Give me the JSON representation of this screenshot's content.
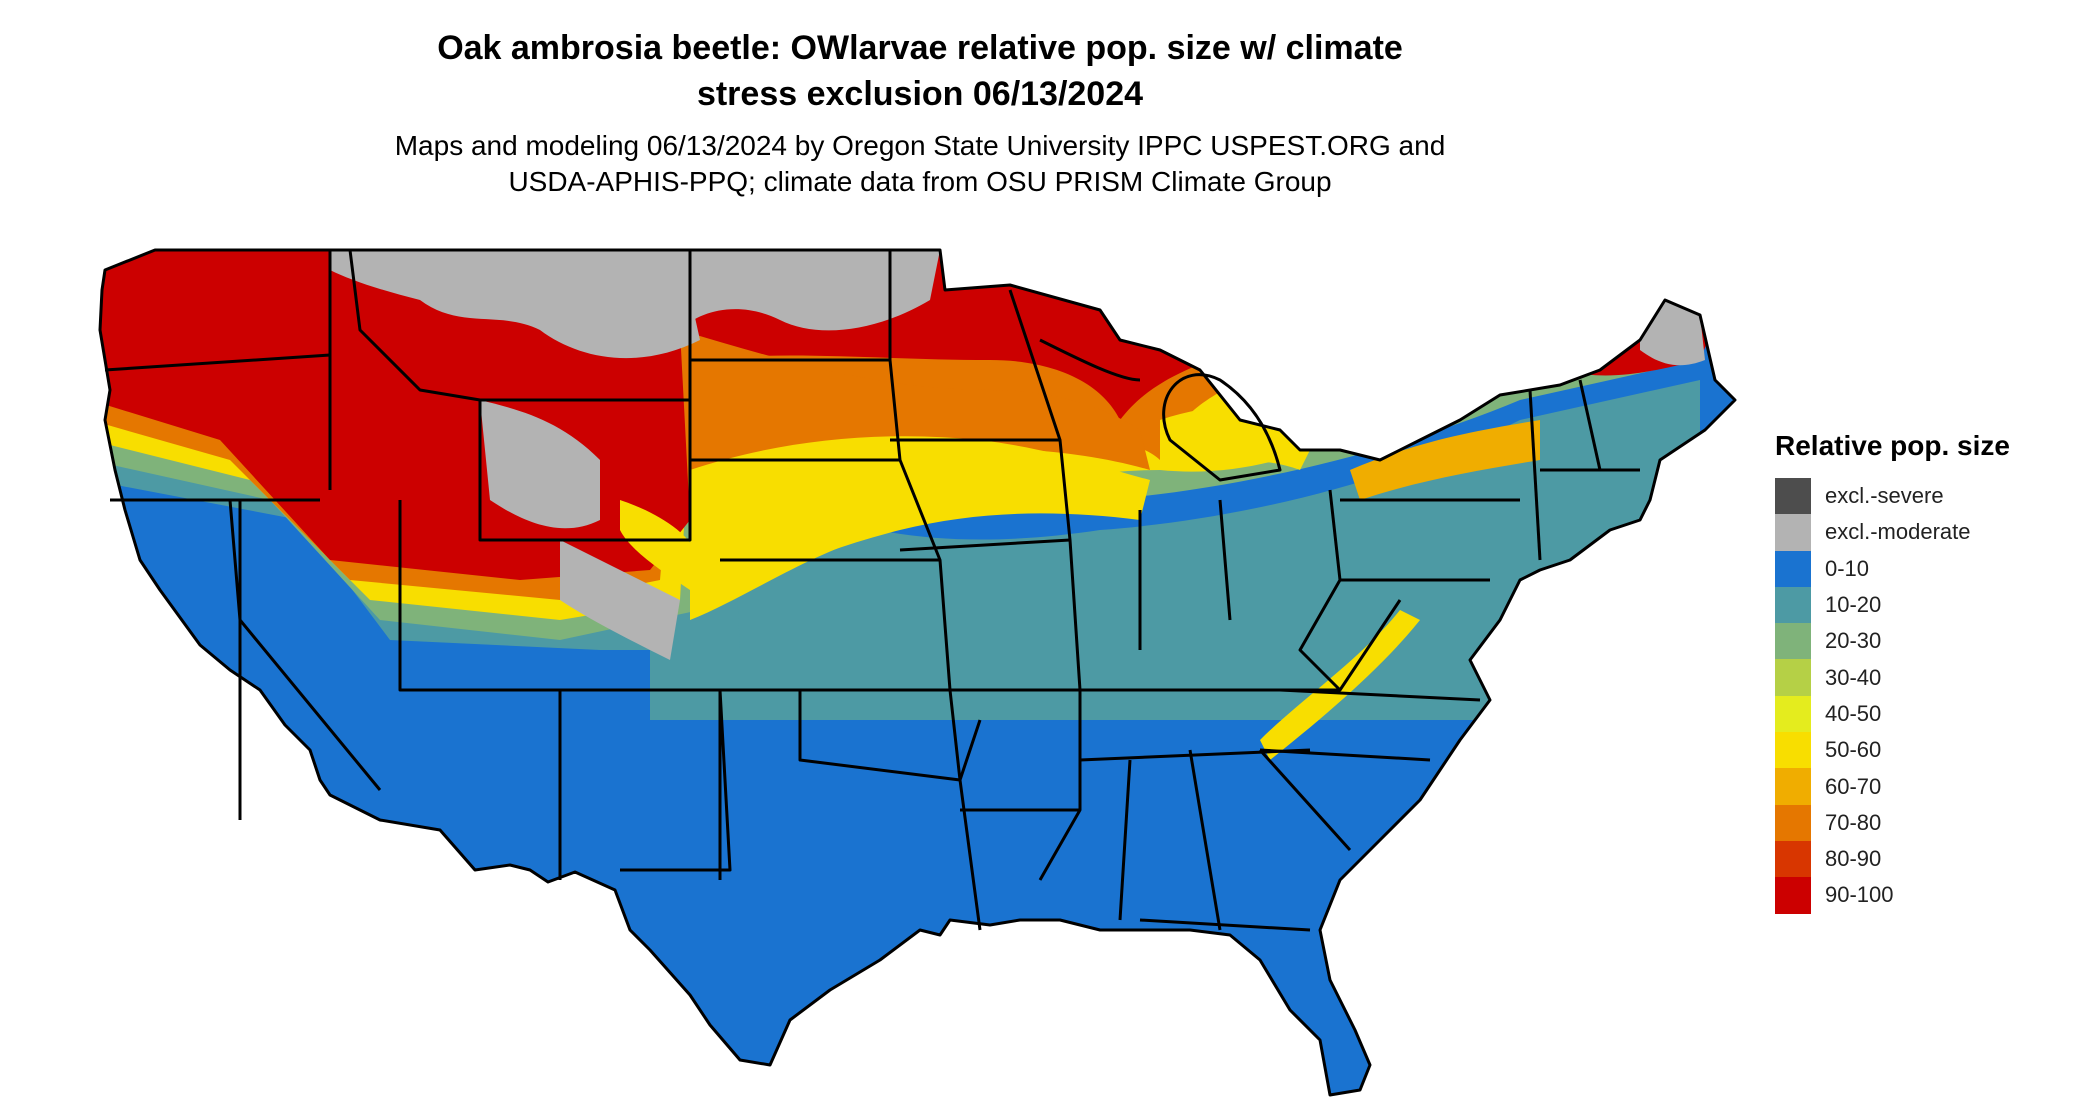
{
  "title": {
    "line1": "Oak ambrosia beetle: OWlarvae relative pop. size w/ climate",
    "line2": "stress exclusion 06/13/2024"
  },
  "subtitle": {
    "line1": "Maps and modeling 06/13/2024 by Oregon State University IPPC USPEST.ORG and",
    "line2": "USDA-APHIS-PPQ; climate data from OSU PRISM Climate Group"
  },
  "legend": {
    "title": "Relative pop. size",
    "items": [
      {
        "label": "excl.-severe",
        "color": "#4d4d4d"
      },
      {
        "label": "excl.-moderate",
        "color": "#b3b3b3"
      },
      {
        "label": "0-10",
        "color": "#1a73d0"
      },
      {
        "label": "10-20",
        "color": "#4d9aa4"
      },
      {
        "label": "20-30",
        "color": "#7fb37a"
      },
      {
        "label": "30-40",
        "color": "#b5d046"
      },
      {
        "label": "40-50",
        "color": "#e4ec1e"
      },
      {
        "label": "50-60",
        "color": "#f8de00"
      },
      {
        "label": "60-70",
        "color": "#f0ad00"
      },
      {
        "label": "70-80",
        "color": "#e57700"
      },
      {
        "label": "80-90",
        "color": "#d83600"
      },
      {
        "label": "90-100",
        "color": "#cc0000"
      }
    ]
  },
  "map": {
    "border_color": "#000000"
  }
}
